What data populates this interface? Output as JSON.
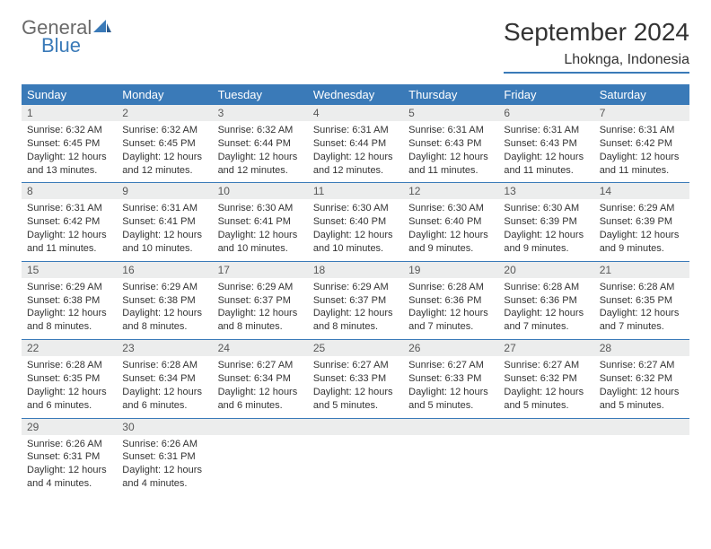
{
  "logo": {
    "general": "General",
    "blue": "Blue"
  },
  "title": "September 2024",
  "location": "Lhoknga, Indonesia",
  "header_bg": "#3a7ab8",
  "daynum_bg": "#eceded",
  "text_color": "#333333",
  "day_names": [
    "Sunday",
    "Monday",
    "Tuesday",
    "Wednesday",
    "Thursday",
    "Friday",
    "Saturday"
  ],
  "weeks": [
    [
      {
        "n": "1",
        "sr": "Sunrise: 6:32 AM",
        "ss": "Sunset: 6:45 PM",
        "dl": "Daylight: 12 hours and 13 minutes."
      },
      {
        "n": "2",
        "sr": "Sunrise: 6:32 AM",
        "ss": "Sunset: 6:45 PM",
        "dl": "Daylight: 12 hours and 12 minutes."
      },
      {
        "n": "3",
        "sr": "Sunrise: 6:32 AM",
        "ss": "Sunset: 6:44 PM",
        "dl": "Daylight: 12 hours and 12 minutes."
      },
      {
        "n": "4",
        "sr": "Sunrise: 6:31 AM",
        "ss": "Sunset: 6:44 PM",
        "dl": "Daylight: 12 hours and 12 minutes."
      },
      {
        "n": "5",
        "sr": "Sunrise: 6:31 AM",
        "ss": "Sunset: 6:43 PM",
        "dl": "Daylight: 12 hours and 11 minutes."
      },
      {
        "n": "6",
        "sr": "Sunrise: 6:31 AM",
        "ss": "Sunset: 6:43 PM",
        "dl": "Daylight: 12 hours and 11 minutes."
      },
      {
        "n": "7",
        "sr": "Sunrise: 6:31 AM",
        "ss": "Sunset: 6:42 PM",
        "dl": "Daylight: 12 hours and 11 minutes."
      }
    ],
    [
      {
        "n": "8",
        "sr": "Sunrise: 6:31 AM",
        "ss": "Sunset: 6:42 PM",
        "dl": "Daylight: 12 hours and 11 minutes."
      },
      {
        "n": "9",
        "sr": "Sunrise: 6:31 AM",
        "ss": "Sunset: 6:41 PM",
        "dl": "Daylight: 12 hours and 10 minutes."
      },
      {
        "n": "10",
        "sr": "Sunrise: 6:30 AM",
        "ss": "Sunset: 6:41 PM",
        "dl": "Daylight: 12 hours and 10 minutes."
      },
      {
        "n": "11",
        "sr": "Sunrise: 6:30 AM",
        "ss": "Sunset: 6:40 PM",
        "dl": "Daylight: 12 hours and 10 minutes."
      },
      {
        "n": "12",
        "sr": "Sunrise: 6:30 AM",
        "ss": "Sunset: 6:40 PM",
        "dl": "Daylight: 12 hours and 9 minutes."
      },
      {
        "n": "13",
        "sr": "Sunrise: 6:30 AM",
        "ss": "Sunset: 6:39 PM",
        "dl": "Daylight: 12 hours and 9 minutes."
      },
      {
        "n": "14",
        "sr": "Sunrise: 6:29 AM",
        "ss": "Sunset: 6:39 PM",
        "dl": "Daylight: 12 hours and 9 minutes."
      }
    ],
    [
      {
        "n": "15",
        "sr": "Sunrise: 6:29 AM",
        "ss": "Sunset: 6:38 PM",
        "dl": "Daylight: 12 hours and 8 minutes."
      },
      {
        "n": "16",
        "sr": "Sunrise: 6:29 AM",
        "ss": "Sunset: 6:38 PM",
        "dl": "Daylight: 12 hours and 8 minutes."
      },
      {
        "n": "17",
        "sr": "Sunrise: 6:29 AM",
        "ss": "Sunset: 6:37 PM",
        "dl": "Daylight: 12 hours and 8 minutes."
      },
      {
        "n": "18",
        "sr": "Sunrise: 6:29 AM",
        "ss": "Sunset: 6:37 PM",
        "dl": "Daylight: 12 hours and 8 minutes."
      },
      {
        "n": "19",
        "sr": "Sunrise: 6:28 AM",
        "ss": "Sunset: 6:36 PM",
        "dl": "Daylight: 12 hours and 7 minutes."
      },
      {
        "n": "20",
        "sr": "Sunrise: 6:28 AM",
        "ss": "Sunset: 6:36 PM",
        "dl": "Daylight: 12 hours and 7 minutes."
      },
      {
        "n": "21",
        "sr": "Sunrise: 6:28 AM",
        "ss": "Sunset: 6:35 PM",
        "dl": "Daylight: 12 hours and 7 minutes."
      }
    ],
    [
      {
        "n": "22",
        "sr": "Sunrise: 6:28 AM",
        "ss": "Sunset: 6:35 PM",
        "dl": "Daylight: 12 hours and 6 minutes."
      },
      {
        "n": "23",
        "sr": "Sunrise: 6:28 AM",
        "ss": "Sunset: 6:34 PM",
        "dl": "Daylight: 12 hours and 6 minutes."
      },
      {
        "n": "24",
        "sr": "Sunrise: 6:27 AM",
        "ss": "Sunset: 6:34 PM",
        "dl": "Daylight: 12 hours and 6 minutes."
      },
      {
        "n": "25",
        "sr": "Sunrise: 6:27 AM",
        "ss": "Sunset: 6:33 PM",
        "dl": "Daylight: 12 hours and 5 minutes."
      },
      {
        "n": "26",
        "sr": "Sunrise: 6:27 AM",
        "ss": "Sunset: 6:33 PM",
        "dl": "Daylight: 12 hours and 5 minutes."
      },
      {
        "n": "27",
        "sr": "Sunrise: 6:27 AM",
        "ss": "Sunset: 6:32 PM",
        "dl": "Daylight: 12 hours and 5 minutes."
      },
      {
        "n": "28",
        "sr": "Sunrise: 6:27 AM",
        "ss": "Sunset: 6:32 PM",
        "dl": "Daylight: 12 hours and 5 minutes."
      }
    ],
    [
      {
        "n": "29",
        "sr": "Sunrise: 6:26 AM",
        "ss": "Sunset: 6:31 PM",
        "dl": "Daylight: 12 hours and 4 minutes."
      },
      {
        "n": "30",
        "sr": "Sunrise: 6:26 AM",
        "ss": "Sunset: 6:31 PM",
        "dl": "Daylight: 12 hours and 4 minutes."
      },
      {
        "empty": true
      },
      {
        "empty": true
      },
      {
        "empty": true
      },
      {
        "empty": true
      },
      {
        "empty": true
      }
    ]
  ]
}
